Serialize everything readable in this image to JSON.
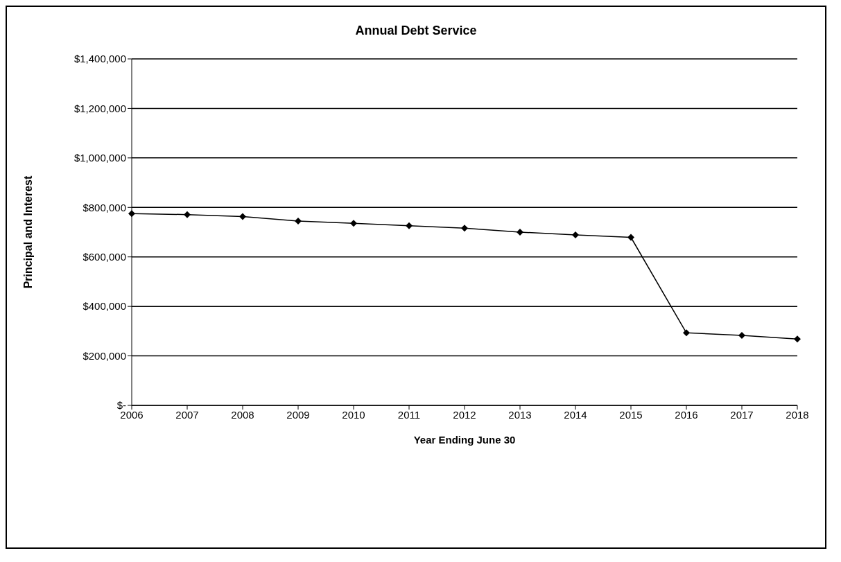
{
  "chart_data": {
    "type": "line",
    "title": "Annual Debt Service",
    "xlabel": "Year Ending June 30",
    "ylabel": "Principal and Interest",
    "categories": [
      "2006",
      "2007",
      "2008",
      "2009",
      "2010",
      "2011",
      "2012",
      "2013",
      "2014",
      "2015",
      "2016",
      "2017",
      "2018"
    ],
    "series": [
      {
        "color": "#000000",
        "values": [
          775000,
          771000,
          763000,
          745000,
          736000,
          726000,
          716000,
          700000,
          689000,
          679000,
          293000,
          283000,
          268000
        ]
      }
    ],
    "ylim": [
      0,
      1400000
    ],
    "yticks": [
      {
        "value": 0,
        "label": "$-"
      },
      {
        "value": 200000,
        "label": "$200,000"
      },
      {
        "value": 400000,
        "label": "$400,000"
      },
      {
        "value": 600000,
        "label": "$600,000"
      },
      {
        "value": 800000,
        "label": "$800,000"
      },
      {
        "value": 1000000,
        "label": "$1,000,000"
      },
      {
        "value": 1200000,
        "label": "$1,200,000"
      },
      {
        "value": 1400000,
        "label": "$1,400,000"
      }
    ],
    "grid": "y",
    "legend": false,
    "marker": "diamond",
    "line_style": "solid"
  }
}
